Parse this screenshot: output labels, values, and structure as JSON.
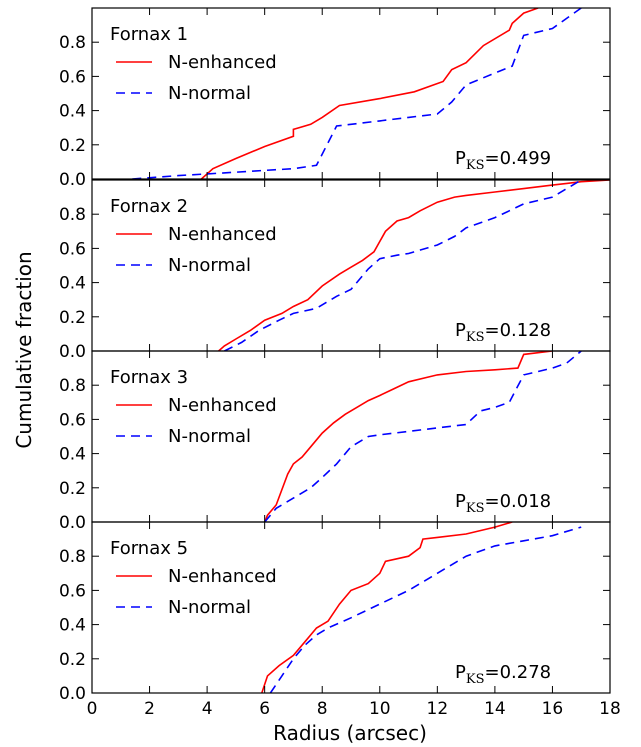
{
  "chart_data": {
    "type": "line",
    "xlabel": "Radius (arcsec)",
    "ylabel": "Cumulative fraction",
    "xlim": [
      0,
      18
    ],
    "ylim": [
      0,
      1
    ],
    "x_ticks": [
      "0",
      "2",
      "4",
      "6",
      "8",
      "10",
      "12",
      "14",
      "16",
      "18"
    ],
    "y_ticks": [
      "0.0",
      "0.2",
      "0.4",
      "0.6",
      "0.8"
    ],
    "colors": {
      "N-enhanced": "#ff0000",
      "N-normal": "#0000ff"
    },
    "panels": [
      {
        "label": "Fornax 1",
        "pks_prefix": "P",
        "pks_sub": "KS",
        "pks_value": "=0.499",
        "series": [
          {
            "name": "N-enhanced",
            "style": "solid",
            "x": [
              3.8,
              4.2,
              5.0,
              6.0,
              7.0,
              7.0,
              7.6,
              8.0,
              8.6,
              10.0,
              11.2,
              12.2,
              12.5,
              13.0,
              13.6,
              14.5,
              14.6,
              15.0,
              15.5
            ],
            "y": [
              0.0,
              0.06,
              0.12,
              0.19,
              0.25,
              0.29,
              0.32,
              0.36,
              0.43,
              0.47,
              0.51,
              0.57,
              0.64,
              0.68,
              0.78,
              0.87,
              0.91,
              0.97,
              1.0
            ]
          },
          {
            "name": "N-normal",
            "style": "dashed",
            "x": [
              1.4,
              2.2,
              3.0,
              4.0,
              5.0,
              6.0,
              7.0,
              7.8,
              8.5,
              9.0,
              10.0,
              11.0,
              12.0,
              12.5,
              13.0,
              14.0,
              14.6,
              15.0,
              16.0,
              17.0
            ],
            "y": [
              0.0,
              0.01,
              0.02,
              0.03,
              0.04,
              0.05,
              0.06,
              0.08,
              0.31,
              0.32,
              0.34,
              0.36,
              0.38,
              0.45,
              0.55,
              0.62,
              0.66,
              0.84,
              0.88,
              1.0
            ]
          }
        ]
      },
      {
        "label": "Fornax 2",
        "pks_prefix": "P",
        "pks_sub": "KS",
        "pks_value": "=0.128",
        "series": [
          {
            "name": "N-enhanced",
            "style": "solid",
            "x": [
              4.4,
              4.6,
              5.0,
              5.5,
              6.0,
              6.6,
              7.0,
              7.5,
              8.0,
              8.6,
              9.0,
              9.4,
              9.8,
              10.2,
              10.6,
              11.0,
              11.4,
              12.0,
              12.6,
              13.0,
              14.0,
              15.0,
              16.0,
              16.5,
              17.0,
              18.0
            ],
            "y": [
              0.0,
              0.03,
              0.07,
              0.12,
              0.18,
              0.22,
              0.26,
              0.3,
              0.38,
              0.45,
              0.49,
              0.53,
              0.58,
              0.7,
              0.76,
              0.78,
              0.82,
              0.87,
              0.9,
              0.91,
              0.93,
              0.95,
              0.97,
              0.98,
              0.99,
              1.0
            ]
          },
          {
            "name": "N-normal",
            "style": "dashed",
            "x": [
              4.6,
              5.2,
              5.8,
              6.5,
              7.0,
              7.8,
              8.5,
              9.0,
              9.6,
              10.0,
              10.6,
              11.0,
              12.0,
              12.6,
              13.0,
              14.0,
              14.5,
              15.0,
              16.0,
              17.0
            ],
            "y": [
              0.0,
              0.05,
              0.12,
              0.18,
              0.22,
              0.25,
              0.32,
              0.36,
              0.48,
              0.54,
              0.56,
              0.57,
              0.62,
              0.67,
              0.72,
              0.78,
              0.82,
              0.86,
              0.9,
              1.0
            ]
          }
        ]
      },
      {
        "label": "Fornax 3",
        "pks_prefix": "P",
        "pks_sub": "KS",
        "pks_value": "=0.018",
        "series": [
          {
            "name": "N-enhanced",
            "style": "solid",
            "x": [
              6.0,
              6.1,
              6.4,
              6.8,
              7.0,
              7.3,
              7.6,
              8.0,
              8.4,
              8.8,
              9.2,
              9.6,
              10.0,
              10.5,
              11.0,
              12.0,
              13.0,
              14.0,
              14.8,
              15.0,
              15.5,
              16.0
            ],
            "y": [
              0.0,
              0.04,
              0.1,
              0.28,
              0.34,
              0.38,
              0.44,
              0.52,
              0.58,
              0.63,
              0.67,
              0.71,
              0.74,
              0.78,
              0.82,
              0.86,
              0.88,
              0.89,
              0.9,
              0.98,
              0.99,
              1.0
            ]
          },
          {
            "name": "N-normal",
            "style": "dashed",
            "x": [
              6.0,
              6.4,
              7.0,
              7.6,
              8.0,
              8.5,
              9.0,
              9.6,
              10.0,
              11.0,
              12.0,
              13.0,
              13.5,
              14.0,
              14.5,
              15.0,
              15.5,
              16.0,
              16.5,
              17.0
            ],
            "y": [
              0.0,
              0.08,
              0.14,
              0.2,
              0.26,
              0.34,
              0.44,
              0.5,
              0.51,
              0.53,
              0.55,
              0.57,
              0.65,
              0.67,
              0.7,
              0.86,
              0.88,
              0.9,
              0.93,
              1.0
            ]
          }
        ]
      },
      {
        "label": "Fornax 5",
        "pks_prefix": "P",
        "pks_sub": "KS",
        "pks_value": "=0.278",
        "series": [
          {
            "name": "N-enhanced",
            "style": "solid",
            "x": [
              5.9,
              6.1,
              6.5,
              7.0,
              7.4,
              7.8,
              8.2,
              8.6,
              9.0,
              9.6,
              10.0,
              10.2,
              11.0,
              11.4,
              11.5,
              12.0,
              13.0,
              14.0,
              14.6
            ],
            "y": [
              0.0,
              0.1,
              0.16,
              0.22,
              0.3,
              0.38,
              0.42,
              0.52,
              0.6,
              0.64,
              0.7,
              0.77,
              0.8,
              0.85,
              0.9,
              0.91,
              0.93,
              0.97,
              1.0
            ]
          },
          {
            "name": "N-normal",
            "style": "dashed",
            "x": [
              6.2,
              6.6,
              7.0,
              7.4,
              7.8,
              8.2,
              9.0,
              10.0,
              11.0,
              12.0,
              13.0,
              14.0,
              15.0,
              16.0,
              17.0
            ],
            "y": [
              0.0,
              0.1,
              0.2,
              0.28,
              0.34,
              0.38,
              0.44,
              0.52,
              0.6,
              0.7,
              0.8,
              0.86,
              0.89,
              0.92,
              0.97
            ]
          }
        ]
      }
    ]
  }
}
